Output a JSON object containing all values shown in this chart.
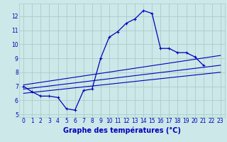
{
  "x_hours": [
    0,
    1,
    2,
    3,
    4,
    5,
    6,
    7,
    8,
    9,
    10,
    11,
    12,
    13,
    14,
    15,
    16,
    17,
    18,
    19,
    20,
    21,
    22,
    23
  ],
  "temp_main": [
    7.0,
    6.6,
    6.3,
    6.3,
    6.2,
    5.4,
    5.3,
    6.7,
    6.8,
    9.0,
    10.5,
    10.9,
    11.5,
    11.8,
    12.4,
    12.2,
    9.7,
    9.7,
    9.4,
    9.4,
    9.1,
    8.5,
    null,
    null
  ],
  "line1_x": [
    0,
    23
  ],
  "line1_y": [
    6.8,
    8.5
  ],
  "line2_x": [
    0,
    23
  ],
  "line2_y": [
    7.1,
    9.2
  ],
  "line3_x": [
    0,
    23
  ],
  "line3_y": [
    6.5,
    8.0
  ],
  "bg_color": "#cce8e8",
  "grid_color": "#aacccc",
  "line_color": "#0000bb",
  "xlabel": "Graphe des températures (°C)",
  "xlabel_fontsize": 7,
  "ylim": [
    4.8,
    12.9
  ],
  "xlim": [
    -0.5,
    23.5
  ],
  "yticks": [
    5,
    6,
    7,
    8,
    9,
    10,
    11,
    12
  ],
  "xticks": [
    0,
    1,
    2,
    3,
    4,
    5,
    6,
    7,
    8,
    9,
    10,
    11,
    12,
    13,
    14,
    15,
    16,
    17,
    18,
    19,
    20,
    21,
    22,
    23
  ],
  "tick_fontsize": 5.5,
  "ylabel_fontsize": 6
}
